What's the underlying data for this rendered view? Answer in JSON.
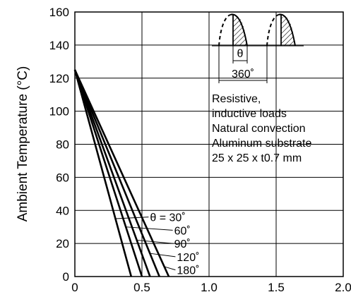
{
  "chart_data": {
    "type": "line",
    "ylabel": "Ambient Temperature  (°C)",
    "xlim": [
      0,
      2.0
    ],
    "ylim": [
      0,
      160
    ],
    "grid": true,
    "x_ticks": [
      "0",
      "0.5",
      "1.0",
      "1.5",
      "2.0"
    ],
    "y_ticks": [
      "0",
      "20",
      "40",
      "60",
      "80",
      "100",
      "120",
      "140",
      "160"
    ],
    "series": [
      {
        "name": "θ = 30˚",
        "points": [
          [
            0,
            125
          ],
          [
            0.42,
            0
          ]
        ]
      },
      {
        "name": "60˚",
        "points": [
          [
            0,
            125
          ],
          [
            0.5,
            0
          ]
        ]
      },
      {
        "name": "90˚",
        "points": [
          [
            0,
            125
          ],
          [
            0.56,
            0
          ]
        ]
      },
      {
        "name": "120˚",
        "points": [
          [
            0,
            125
          ],
          [
            0.63,
            0
          ]
        ]
      },
      {
        "name": "180˚",
        "points": [
          [
            0,
            125
          ],
          [
            0.7,
            0
          ]
        ]
      }
    ],
    "annotations": [
      "Resistive,",
      "inductive loads",
      "Natural convection",
      "Aluminum substrate",
      "25 x 25 x t0.7 mm"
    ],
    "waveform": {
      "theta_label": "θ",
      "period_label": "360˚"
    }
  }
}
